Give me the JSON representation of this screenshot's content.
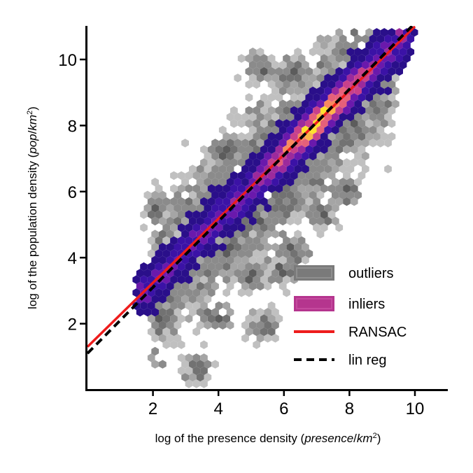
{
  "chart_data": {
    "type": "scatter",
    "subtype": "hexbin",
    "title": "",
    "xlabel_parts": [
      "log of the presence density (",
      "presence",
      "/",
      "km",
      "2",
      ")"
    ],
    "ylabel_parts": [
      "log of the population density (",
      "pop",
      "/",
      "km",
      "2",
      ")"
    ],
    "xlim": [
      0,
      11
    ],
    "ylim": [
      0,
      11
    ],
    "xticks": [
      2,
      4,
      6,
      8,
      10
    ],
    "yticks": [
      2,
      4,
      6,
      8,
      10
    ],
    "xtick_labels": [
      "2",
      "4",
      "6",
      "8",
      "10"
    ],
    "ytick_labels": [
      "2",
      "4",
      "6",
      "8",
      "10"
    ],
    "grid": false,
    "legend_position": "bottom-right",
    "legend": [
      {
        "label": "outliers",
        "kind": "patch",
        "color": "#7a7a7a"
      },
      {
        "label": "inliers",
        "kind": "patch",
        "color": "#b5358e"
      },
      {
        "label": "RANSAC",
        "kind": "line",
        "color": "#ee1c1c"
      },
      {
        "label": "lin reg",
        "kind": "dashed-line",
        "color": "#000000"
      }
    ],
    "lines": [
      {
        "name": "RANSAC",
        "color": "#ee1c1c",
        "style": "solid",
        "x": [
          0,
          10
        ],
        "y": [
          1.3,
          11.0
        ]
      },
      {
        "name": "lin reg",
        "color": "#000000",
        "style": "dashed",
        "x": [
          0,
          10
        ],
        "y": [
          1.1,
          11.1
        ]
      }
    ],
    "inlier_trend": {
      "slope": 0.97,
      "intercept": 1.3
    },
    "inlier_x_range": [
      1.5,
      9.9
    ],
    "inlier_density_peak": {
      "x": 7.0,
      "y": 8.3
    },
    "outlier_clusters": [
      {
        "x": 5.0,
        "y": 3.5
      },
      {
        "x": 3.9,
        "y": 2.2
      },
      {
        "x": 3.4,
        "y": 0.6
      },
      {
        "x": 5.4,
        "y": 2.0
      },
      {
        "x": 5.9,
        "y": 3.6
      },
      {
        "x": 6.3,
        "y": 4.2
      },
      {
        "x": 7.2,
        "y": 5.3
      },
      {
        "x": 7.9,
        "y": 6.0
      },
      {
        "x": 5.3,
        "y": 9.7
      },
      {
        "x": 6.2,
        "y": 9.6
      },
      {
        "x": 4.2,
        "y": 7.2
      },
      {
        "x": 2.2,
        "y": 5.5
      }
    ],
    "colors": {
      "colormap_inliers": [
        "#2a0f8a",
        "#3b12a6",
        "#6a19ac",
        "#9c2a9c",
        "#c8408b",
        "#e5607a",
        "#f78a5f",
        "#fcb44a",
        "#fde030"
      ],
      "colormap_outliers": [
        "#5c5c5c",
        "#727272",
        "#8b8b8b",
        "#a5a5a5",
        "#c0c0c0",
        "#d6d6d6"
      ]
    }
  }
}
